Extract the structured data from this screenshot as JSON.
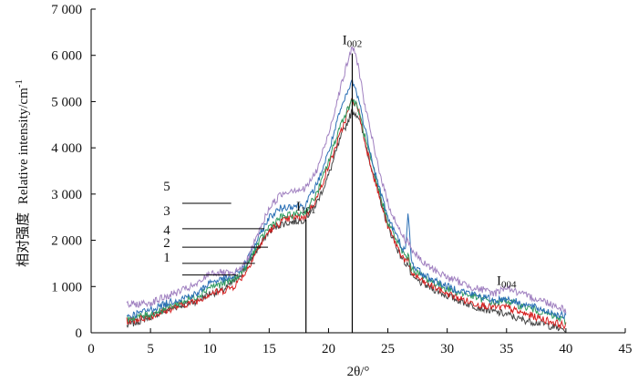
{
  "chart_data": {
    "type": "line",
    "xlabel": "2θ/°",
    "ylabel_cn": "相对强度",
    "ylabel_en": "Relative intensity/cm",
    "ylabel_sup": "-1",
    "xlim": [
      0,
      45
    ],
    "ylim": [
      0,
      7000
    ],
    "x_ticks": [
      0,
      5,
      10,
      15,
      20,
      25,
      30,
      35,
      40,
      45
    ],
    "x_tick_labels": [
      "0",
      "5",
      "10",
      "15",
      "20",
      "25",
      "30",
      "35",
      "40",
      "45"
    ],
    "y_ticks": [
      0,
      1000,
      2000,
      3000,
      4000,
      5000,
      6000,
      7000
    ],
    "y_tick_labels": [
      "0",
      "1 000",
      "2 000",
      "3 000",
      "4 000",
      "5 000",
      "6 000",
      "7 000"
    ],
    "grid": false,
    "peaks": [
      {
        "main": "I",
        "sub": "101",
        "x": 18.1,
        "label_at": 2600
      },
      {
        "main": "I",
        "sub": "002",
        "x": 22,
        "label_at": 6200
      },
      {
        "main": "I",
        "sub": "004",
        "x": 35,
        "label_at": 1000
      }
    ],
    "x": [
      3,
      5,
      7,
      9,
      10,
      11,
      12,
      13,
      14,
      15,
      16,
      17,
      18,
      19,
      20,
      21,
      22,
      22.5,
      23,
      24,
      25,
      26,
      26.5,
      26.7,
      27,
      28,
      30,
      32,
      34,
      35,
      36,
      38,
      40
    ],
    "series": [
      {
        "name": "1",
        "color": "#444444",
        "values": [
          150,
          350,
          550,
          700,
          850,
          900,
          1100,
          1400,
          1800,
          2200,
          2350,
          2400,
          2450,
          2800,
          3400,
          4200,
          4800,
          4700,
          4200,
          3200,
          2300,
          1700,
          1500,
          1500,
          1200,
          1050,
          800,
          600,
          450,
          400,
          300,
          200,
          50
        ]
      },
      {
        "name": "2",
        "color": "#d62020",
        "values": [
          250,
          350,
          550,
          700,
          850,
          900,
          1000,
          1300,
          1800,
          2200,
          2400,
          2500,
          2500,
          2900,
          3600,
          4300,
          5050,
          4850,
          4200,
          3200,
          2300,
          1750,
          1550,
          1550,
          1300,
          1100,
          850,
          650,
          550,
          550,
          450,
          300,
          150
        ]
      },
      {
        "name": "3",
        "color": "#2a6fb5",
        "values": [
          350,
          500,
          700,
          850,
          1100,
          1150,
          1200,
          1500,
          2000,
          2500,
          2700,
          2750,
          2750,
          3200,
          3900,
          4800,
          5450,
          5100,
          4500,
          3400,
          2500,
          1950,
          1750,
          2600,
          1500,
          1250,
          1000,
          850,
          700,
          750,
          650,
          500,
          350
        ]
      },
      {
        "name": "4",
        "color": "#2e9a5e",
        "values": [
          300,
          400,
          600,
          800,
          1000,
          1050,
          1150,
          1400,
          1900,
          2300,
          2500,
          2550,
          2600,
          3000,
          3700,
          4500,
          5050,
          4850,
          4300,
          3300,
          2400,
          1850,
          1650,
          1650,
          1400,
          1200,
          950,
          800,
          650,
          700,
          600,
          450,
          250
        ]
      },
      {
        "name": "5",
        "color": "#a080c0",
        "values": [
          600,
          650,
          850,
          1050,
          1300,
          1300,
          1250,
          1500,
          2100,
          2700,
          3000,
          3100,
          3100,
          3500,
          4300,
          5300,
          6200,
          5800,
          5000,
          3800,
          2800,
          2200,
          2000,
          2000,
          1800,
          1500,
          1200,
          1000,
          850,
          1000,
          850,
          700,
          500
        ]
      }
    ]
  }
}
